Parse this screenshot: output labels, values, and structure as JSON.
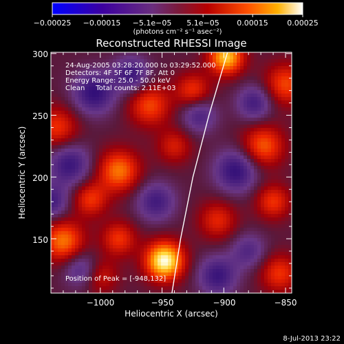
{
  "chart_data": {
    "type": "heatmap",
    "title": "Reconstructed RHESSI Image",
    "xlabel": "Heliocentric X (arcsec)",
    "ylabel": "Heliocentric Y (arcsec)",
    "xlim": [
      -1040,
      -845
    ],
    "ylim": [
      106,
      301
    ],
    "x_ticks": [
      -1000,
      -950,
      -900,
      -850
    ],
    "x_tick_labels": [
      "−1000",
      "−950",
      "−900",
      "−850"
    ],
    "y_ticks": [
      150,
      200,
      250,
      300
    ],
    "y_tick_labels": [
      "150",
      "200",
      "250",
      "300"
    ],
    "colorbar": {
      "min": -0.00025,
      "max": 0.00025,
      "tick_values": [
        -0.00025,
        -0.00015,
        -5.1e-05,
        5.1e-05,
        0.00015,
        0.00025
      ],
      "tick_labels": [
        "−0.00025",
        "−0.00015",
        "−5.1e−05",
        "5.1e−05",
        "0.00015",
        "0.00025"
      ],
      "units_label": "(photons cm⁻² s⁻¹ asec⁻²)"
    },
    "annotations": [
      "24-Aug-2005 03:28:20.000 to 03:29:52.000",
      "Detectors: 4F 5F 6F 7F 8F, Att 0",
      "Energy Range: 25.0 - 50.0 keV",
      "Clean     Total counts: 2.11E+03"
    ],
    "peak_label": "Position of Peak = [-948,132]",
    "peak": [
      -948,
      132
    ],
    "limb_points": [
      [
        -942,
        106
      ],
      [
        -935,
        150
      ],
      [
        -925,
        200
      ],
      [
        -912,
        250
      ],
      [
        -897,
        301
      ]
    ],
    "sources": [
      {
        "x": -948,
        "y": 132,
        "amp": 1.0,
        "s": 11
      },
      {
        "x": -1030,
        "y": 148,
        "amp": 0.62,
        "s": 12
      },
      {
        "x": -985,
        "y": 205,
        "amp": 0.62,
        "s": 12
      },
      {
        "x": -1008,
        "y": 182,
        "amp": 0.45,
        "s": 10
      },
      {
        "x": -1035,
        "y": 240,
        "amp": 0.45,
        "s": 12
      },
      {
        "x": -960,
        "y": 258,
        "amp": 0.5,
        "s": 12
      },
      {
        "x": -925,
        "y": 270,
        "amp": 0.45,
        "s": 10
      },
      {
        "x": -898,
        "y": 297,
        "amp": 0.82,
        "s": 10
      },
      {
        "x": -850,
        "y": 275,
        "amp": 0.5,
        "s": 12
      },
      {
        "x": -868,
        "y": 225,
        "amp": 0.55,
        "s": 12
      },
      {
        "x": -860,
        "y": 180,
        "amp": 0.45,
        "s": 10
      },
      {
        "x": -905,
        "y": 165,
        "amp": 0.4,
        "s": 11
      },
      {
        "x": -985,
        "y": 150,
        "amp": 0.45,
        "s": 10
      },
      {
        "x": -855,
        "y": 122,
        "amp": 0.45,
        "s": 11
      },
      {
        "x": -1000,
        "y": 120,
        "amp": 0.35,
        "s": 10
      },
      {
        "x": -940,
        "y": 225,
        "amp": 0.35,
        "s": 10
      },
      {
        "x": -1005,
        "y": 268,
        "amp": -0.55,
        "s": 12
      },
      {
        "x": -975,
        "y": 283,
        "amp": -0.5,
        "s": 10
      },
      {
        "x": -1025,
        "y": 210,
        "amp": -0.5,
        "s": 12
      },
      {
        "x": -1040,
        "y": 180,
        "amp": -0.45,
        "s": 10
      },
      {
        "x": -955,
        "y": 180,
        "amp": -0.45,
        "s": 11
      },
      {
        "x": -890,
        "y": 205,
        "amp": -0.55,
        "s": 12
      },
      {
        "x": -905,
        "y": 120,
        "amp": -0.5,
        "s": 11
      },
      {
        "x": -880,
        "y": 140,
        "amp": -0.35,
        "s": 10
      },
      {
        "x": -920,
        "y": 250,
        "amp": -0.4,
        "s": 10
      },
      {
        "x": -875,
        "y": 260,
        "amp": -0.45,
        "s": 10
      },
      {
        "x": -1015,
        "y": 125,
        "amp": -0.4,
        "s": 10
      }
    ]
  },
  "footer": {
    "timestamp": "8-Jul-2013 23:22"
  },
  "colors": {
    "background": "#000000",
    "foreground": "#ffffff",
    "limb": "#ffffff"
  }
}
